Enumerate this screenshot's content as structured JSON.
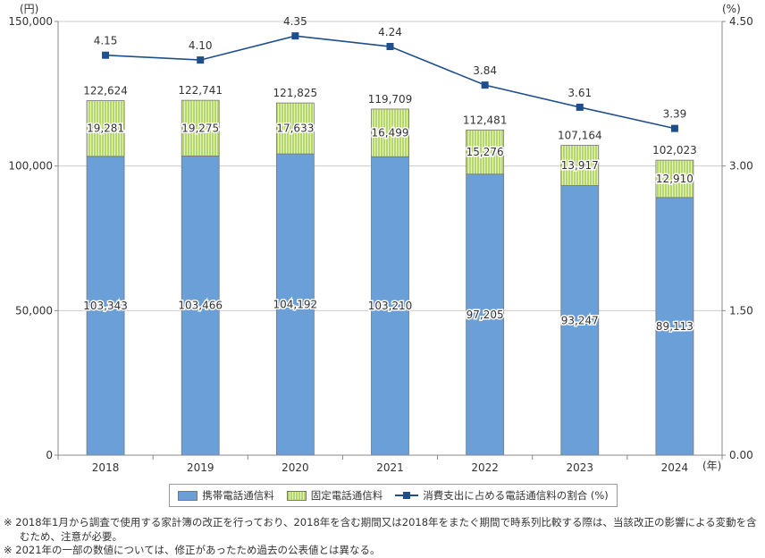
{
  "chart_data": {
    "type": "bar",
    "stacked": true,
    "categories": [
      "2018",
      "2019",
      "2020",
      "2021",
      "2022",
      "2023",
      "2024"
    ],
    "series": [
      {
        "name": "携帯電話通信料",
        "axis": "left",
        "color": "#6a9fd8",
        "values": [
          103343,
          103466,
          104192,
          103210,
          97205,
          93247,
          89113
        ],
        "labels": [
          "103,343",
          "103,466",
          "104,192",
          "103,210",
          "97,205",
          "93,247",
          "89,113"
        ]
      },
      {
        "name": "固定電話通信料",
        "axis": "left",
        "color": "#b6d86a",
        "values": [
          19281,
          19275,
          17633,
          16499,
          15276,
          13917,
          12910
        ],
        "labels": [
          "19,281",
          "19,275",
          "17,633",
          "16,499",
          "15,276",
          "13,917",
          "12,910"
        ]
      },
      {
        "name": "消費支出に占める電話通信料の割合 (%)",
        "axis": "right",
        "type": "line",
        "color": "#1f4e8c",
        "values": [
          4.15,
          4.1,
          4.35,
          4.24,
          3.84,
          3.61,
          3.39
        ],
        "labels": [
          "4.15",
          "4.10",
          "4.35",
          "4.24",
          "3.84",
          "3.61",
          "3.39"
        ]
      }
    ],
    "totals": [
      122624,
      122741,
      121825,
      119709,
      112481,
      107164,
      102023
    ],
    "total_labels": [
      "122,624",
      "122,741",
      "121,825",
      "119,709",
      "112,481",
      "107,164",
      "102,023"
    ],
    "left_axis": {
      "unit": "(円)",
      "ylim": [
        0,
        150000
      ],
      "ticks": [
        0,
        50000,
        100000,
        150000
      ],
      "tick_labels": [
        "0",
        "50,000",
        "100,000",
        "150,000"
      ]
    },
    "right_axis": {
      "unit": "(%)",
      "ylim": [
        0,
        4.5
      ],
      "ticks": [
        0,
        1.5,
        3,
        4.5
      ],
      "tick_labels": [
        "0.00",
        "1.50",
        "3.00",
        "4.50"
      ]
    },
    "xlabel": "(年)",
    "grid": true,
    "legend_position": "bottom"
  },
  "legend": [
    "携帯電話通信料",
    "固定電話通信料",
    "消費支出に占める電話通信料の割合 (%)"
  ],
  "notes": [
    "※ 2018年1月から調査で使用する家計簿の改正を行っており、2018年を含む期間又は2018年をまたぐ期間で時系列比較する際は、当該改正の影響による変動を含むため、注意が必要。",
    "※ 2021年の一部の数値については、修正があったため過去の公表値とは異なる。"
  ]
}
